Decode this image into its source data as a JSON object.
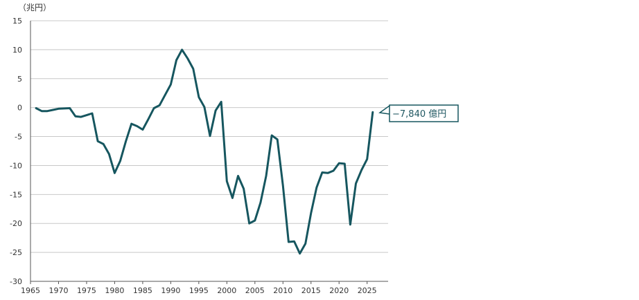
{
  "chart_data": {
    "type": "line",
    "ylabel": "（兆円）",
    "xlim": [
      1965,
      2028
    ],
    "ylim": [
      -30,
      15
    ],
    "x_ticks": [
      1965,
      1970,
      1975,
      1980,
      1985,
      1990,
      1995,
      2000,
      2005,
      2010,
      2015,
      2020,
      2025
    ],
    "y_ticks": [
      15,
      10,
      5,
      0,
      -5,
      -10,
      -15,
      -20,
      -25,
      -30
    ],
    "grid": "horizontal",
    "line_color": "#16565f",
    "series": [
      {
        "x": [
          1966,
          1967,
          1968,
          1969,
          1970,
          1971,
          1972,
          1973,
          1974,
          1975,
          1976,
          1977,
          1978,
          1979,
          1980,
          1981,
          1982,
          1983,
          1984,
          1985,
          1986,
          1987,
          1988,
          1989,
          1990,
          1991,
          1992,
          1993,
          1994,
          1995,
          1996,
          1997,
          1998,
          1999,
          2000,
          2001,
          2002,
          2003,
          2004,
          2005,
          2006,
          2007,
          2008,
          2009,
          2010,
          2011,
          2012,
          2013,
          2014,
          2015,
          2016,
          2017,
          2018,
          2019,
          2020,
          2021,
          2022,
          2023,
          2024,
          2025
        ],
        "values": [
          -0.1,
          -0.6,
          -0.6,
          -0.4,
          -0.2,
          -0.15,
          -0.1,
          -1.5,
          -1.6,
          -1.3,
          -1.0,
          -5.8,
          -6.3,
          -8.0,
          -11.3,
          -9.2,
          -5.8,
          -2.8,
          -3.2,
          -3.8,
          -2.0,
          -0.1,
          0.4,
          2.2,
          4.0,
          8.2,
          10.0,
          8.5,
          6.7,
          1.8,
          0.1,
          -4.9,
          -0.5,
          1.0,
          -12.7,
          -15.6,
          -11.8,
          -14.0,
          -20.0,
          -19.5,
          -16.4,
          -11.8,
          -4.8,
          -5.5,
          -13.5,
          -23.2,
          -23.1,
          -25.2,
          -23.5,
          -18.2,
          -13.8,
          -11.2,
          -11.3,
          -10.9,
          -9.6,
          -9.7,
          -20.2,
          -13.1,
          -10.8,
          -8.9
        ]
      }
    ],
    "last_point": {
      "x": 2026,
      "value": -0.784
    },
    "callout": "−7,840 億円"
  }
}
